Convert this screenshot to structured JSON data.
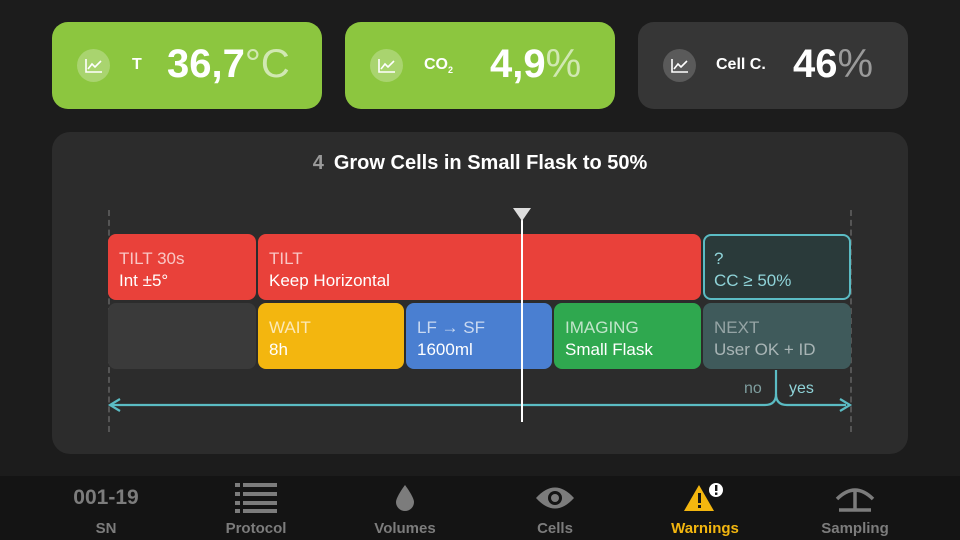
{
  "metrics": [
    {
      "label": "T",
      "value": "36,7",
      "unit": "°C",
      "icon": "chart-icon",
      "color": "#8cc63f"
    },
    {
      "label": "CO",
      "label_sub": "2",
      "value": "4,9",
      "unit": "%",
      "icon": "chart-icon",
      "color": "#8cc63f"
    },
    {
      "label": "Cell C.",
      "value": "46",
      "unit": "%",
      "icon": "chart-icon",
      "color": "#363636"
    }
  ],
  "step": {
    "number": "4",
    "title": "Grow Cells in Small Flask to 50%"
  },
  "timeline": {
    "row1": [
      {
        "l1": "TILT 30s",
        "l2": "Int ±5°",
        "color": "#e9413a"
      },
      {
        "l1": "TILT",
        "l2": "Keep Horizontal",
        "color": "#e9413a"
      },
      {
        "l1": "?",
        "l2": "CC ≥ 50%",
        "color": "#2a3a3a",
        "border": "#5bbcc4"
      }
    ],
    "row2": [
      {
        "l1": "",
        "l2": "",
        "color": "#3a3a3a"
      },
      {
        "l1": "WAIT",
        "l2": "8h",
        "color": "#f3b60f"
      },
      {
        "l1": "LF → SF",
        "l2": "1600ml",
        "color": "#4a7fd1"
      },
      {
        "l1": "IMAGING",
        "l2": "Small Flask",
        "color": "#2fa84f"
      },
      {
        "l1": "NEXT",
        "l2": "User OK + ID",
        "color": "#3f5a5b"
      }
    ],
    "branch_no": "no",
    "branch_yes": "yes"
  },
  "nav": [
    {
      "label": "SN",
      "value": "001-19",
      "icon": "serial-number",
      "active": false
    },
    {
      "label": "Protocol",
      "icon": "list-icon",
      "active": false
    },
    {
      "label": "Volumes",
      "icon": "drop-icon",
      "active": false
    },
    {
      "label": "Cells",
      "icon": "eye-icon",
      "active": false
    },
    {
      "label": "Warnings",
      "icon": "warning-icon",
      "active": true
    },
    {
      "label": "Sampling",
      "icon": "sampling-icon",
      "active": false
    }
  ],
  "colors": {
    "accent": "#f3b60f",
    "teal": "#5bbcc4"
  }
}
